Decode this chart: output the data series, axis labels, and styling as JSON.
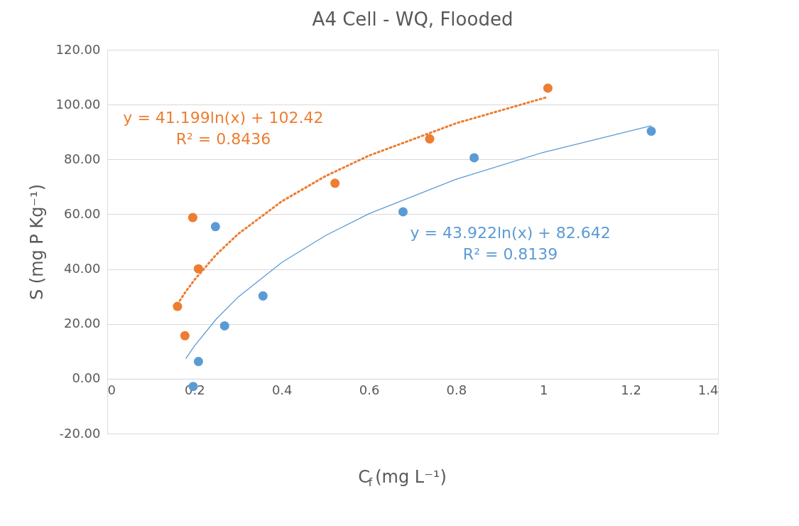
{
  "chart_data": {
    "type": "scatter",
    "title": "A4 Cell - WQ, Flooded",
    "xlabel": "C$_{f}$ (mg L⁻¹)",
    "ylabel": "S (mg P Kg⁻¹)",
    "xlim": [
      0,
      1.4
    ],
    "xticks": [
      0,
      0.2,
      0.4,
      0.6,
      0.8,
      1,
      1.2,
      1.4
    ],
    "ylim": [
      -20,
      120
    ],
    "yticks": [
      {
        "value": -20,
        "label": "-20.00"
      },
      {
        "value": 0,
        "label": "0.00"
      },
      {
        "value": 20,
        "label": "20.00"
      },
      {
        "value": 40,
        "label": "40.00"
      },
      {
        "value": 60,
        "label": "60.00"
      },
      {
        "value": 80,
        "label": "80.00"
      },
      {
        "value": 100,
        "label": "100.00"
      },
      {
        "value": 120,
        "label": "120.00"
      }
    ],
    "grid": "y",
    "marker": "circle",
    "series": [
      {
        "color": "#5b9bd5",
        "x": [
          0.197,
          0.209,
          0.248,
          0.269,
          0.357,
          0.678,
          0.841,
          1.247
        ],
        "values": [
          -2.8,
          6.3,
          55.5,
          19.3,
          30.2,
          60.9,
          80.6,
          90.3
        ]
      },
      {
        "color": "#ed7d31",
        "x": [
          0.161,
          0.178,
          0.196,
          0.209,
          0.522,
          0.739,
          1.01
        ],
        "values": [
          26.4,
          15.7,
          58.8,
          40.1,
          71.3,
          87.5,
          106.0
        ]
      },
      {
        "type": "line",
        "color": "#ed7d31",
        "line_style": "dotted",
        "marker": "none",
        "x": [
          0.161,
          0.18,
          0.2,
          0.25,
          0.3,
          0.4,
          0.5,
          0.6,
          0.8,
          1.01
        ],
        "values": [
          27.2,
          31.8,
          36.1,
          45.3,
          52.8,
          64.7,
          73.9,
          81.4,
          93.2,
          102.8
        ]
      },
      {
        "type": "line",
        "color": "#5b9bd5",
        "line_style": "solid",
        "marker": "none",
        "x": [
          0.18,
          0.2,
          0.25,
          0.3,
          0.4,
          0.5,
          0.6,
          0.8,
          1.0,
          1.247
        ],
        "values": [
          7.3,
          12.0,
          21.8,
          29.8,
          42.4,
          52.2,
          60.2,
          72.8,
          82.6,
          92.3
        ]
      }
    ],
    "annotations": [
      "y = 41.199ln(x) + 102.42\nR² = 0.8436",
      "y = 43.922ln(x) + 82.642\nR² = 0.8139"
    ]
  }
}
